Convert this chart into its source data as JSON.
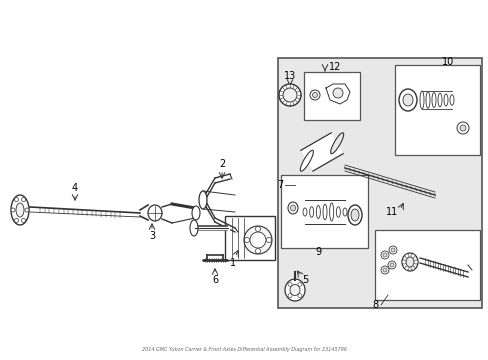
{
  "title": "2014 GMC Yukon Carrier & Front Axles Differential Assembly Diagram for 23145796",
  "bg_color": "#ffffff",
  "box_bg": "#e8e8e8",
  "line_color": "#333333",
  "text_color": "#000000"
}
